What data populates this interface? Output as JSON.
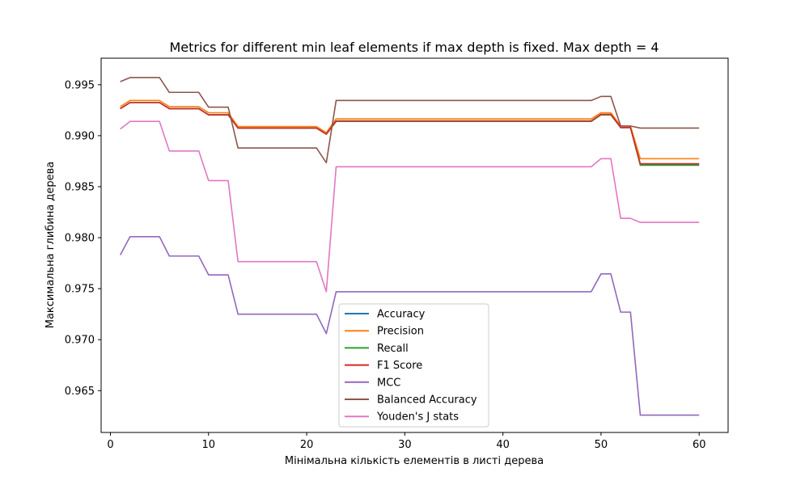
{
  "chart_data": {
    "type": "line",
    "title": "Metrics for different min leaf elements if max depth is fixed. Max depth = 4",
    "xlabel": "Мінімальна кількість елементів в листі дерева",
    "ylabel": "Максимальна глибина дерева",
    "xlim": [
      -0.95,
      62.95
    ],
    "ylim": [
      0.9609,
      0.9976
    ],
    "xticks": [
      0,
      10,
      20,
      30,
      40,
      50,
      60
    ],
    "yticks": [
      0.965,
      0.97,
      0.975,
      0.98,
      0.985,
      0.99,
      0.995
    ],
    "grid": false,
    "legend_position": "lower-center",
    "x": [
      1,
      2,
      3,
      4,
      5,
      6,
      7,
      8,
      9,
      10,
      11,
      12,
      13,
      14,
      15,
      16,
      17,
      18,
      19,
      20,
      21,
      22,
      23,
      24,
      25,
      26,
      27,
      28,
      29,
      30,
      31,
      32,
      33,
      34,
      35,
      36,
      37,
      38,
      39,
      40,
      41,
      42,
      43,
      44,
      45,
      46,
      47,
      48,
      49,
      50,
      51,
      52,
      53,
      54,
      55,
      56,
      57,
      58,
      59,
      60
    ],
    "series": [
      {
        "name": "Accuracy",
        "color": "#1f77b4",
        "values": [
          0.99265,
          0.99325,
          0.99325,
          0.99325,
          0.99325,
          0.99265,
          0.99265,
          0.99265,
          0.99265,
          0.99205,
          0.99205,
          0.99205,
          0.99075,
          0.99075,
          0.99075,
          0.99075,
          0.99075,
          0.99075,
          0.99075,
          0.99075,
          0.99075,
          0.99015,
          0.9914,
          0.9914,
          0.9914,
          0.9914,
          0.9914,
          0.9914,
          0.9914,
          0.9914,
          0.9914,
          0.9914,
          0.9914,
          0.9914,
          0.9914,
          0.9914,
          0.9914,
          0.9914,
          0.9914,
          0.9914,
          0.9914,
          0.9914,
          0.9914,
          0.9914,
          0.9914,
          0.9914,
          0.9914,
          0.9914,
          0.9914,
          0.99205,
          0.99205,
          0.9908,
          0.9908,
          0.9872,
          0.9872,
          0.9872,
          0.9872,
          0.9872,
          0.9872,
          0.9872
        ]
      },
      {
        "name": "Precision",
        "color": "#ff7f0e",
        "values": [
          0.99285,
          0.99345,
          0.99345,
          0.99345,
          0.99345,
          0.99285,
          0.99285,
          0.99285,
          0.99285,
          0.99225,
          0.99225,
          0.99225,
          0.9909,
          0.9909,
          0.9909,
          0.9909,
          0.9909,
          0.9909,
          0.9909,
          0.9909,
          0.9909,
          0.9903,
          0.99165,
          0.99165,
          0.99165,
          0.99165,
          0.99165,
          0.99165,
          0.99165,
          0.99165,
          0.99165,
          0.99165,
          0.99165,
          0.99165,
          0.99165,
          0.99165,
          0.99165,
          0.99165,
          0.99165,
          0.99165,
          0.99165,
          0.99165,
          0.99165,
          0.99165,
          0.99165,
          0.99165,
          0.99165,
          0.99165,
          0.99165,
          0.99225,
          0.99225,
          0.99095,
          0.99095,
          0.98775,
          0.98775,
          0.98775,
          0.98775,
          0.98775,
          0.98775,
          0.98775
        ]
      },
      {
        "name": "Recall",
        "color": "#2ca02c",
        "values": [
          0.99265,
          0.99325,
          0.99325,
          0.99325,
          0.99325,
          0.99265,
          0.99265,
          0.99265,
          0.99265,
          0.99205,
          0.99205,
          0.99205,
          0.99075,
          0.99075,
          0.99075,
          0.99075,
          0.99075,
          0.99075,
          0.99075,
          0.99075,
          0.99075,
          0.99015,
          0.9914,
          0.9914,
          0.9914,
          0.9914,
          0.9914,
          0.9914,
          0.9914,
          0.9914,
          0.9914,
          0.9914,
          0.9914,
          0.9914,
          0.9914,
          0.9914,
          0.9914,
          0.9914,
          0.9914,
          0.9914,
          0.9914,
          0.9914,
          0.9914,
          0.9914,
          0.9914,
          0.9914,
          0.9914,
          0.9914,
          0.9914,
          0.99205,
          0.99205,
          0.9908,
          0.9908,
          0.9871,
          0.9871,
          0.9871,
          0.9871,
          0.9871,
          0.9871,
          0.9871
        ]
      },
      {
        "name": "F1 Score",
        "color": "#d62728",
        "values": [
          0.99265,
          0.99325,
          0.99325,
          0.99325,
          0.99325,
          0.99265,
          0.99265,
          0.99265,
          0.99265,
          0.99205,
          0.99205,
          0.99205,
          0.99075,
          0.99075,
          0.99075,
          0.99075,
          0.99075,
          0.99075,
          0.99075,
          0.99075,
          0.99075,
          0.99015,
          0.99145,
          0.99145,
          0.99145,
          0.99145,
          0.99145,
          0.99145,
          0.99145,
          0.99145,
          0.99145,
          0.99145,
          0.99145,
          0.99145,
          0.99145,
          0.99145,
          0.99145,
          0.99145,
          0.99145,
          0.99145,
          0.99145,
          0.99145,
          0.99145,
          0.99145,
          0.99145,
          0.99145,
          0.99145,
          0.99145,
          0.99145,
          0.9921,
          0.9921,
          0.9908,
          0.9908,
          0.98725,
          0.98725,
          0.98725,
          0.98725,
          0.98725,
          0.98725,
          0.98725
        ]
      },
      {
        "name": "MCC",
        "color": "#9467bd",
        "values": [
          0.9783,
          0.9801,
          0.9801,
          0.9801,
          0.9801,
          0.9782,
          0.9782,
          0.9782,
          0.9782,
          0.97635,
          0.97635,
          0.97635,
          0.9725,
          0.9725,
          0.9725,
          0.9725,
          0.9725,
          0.9725,
          0.9725,
          0.9725,
          0.9725,
          0.9706,
          0.9747,
          0.9747,
          0.9747,
          0.9747,
          0.9747,
          0.9747,
          0.9747,
          0.9747,
          0.9747,
          0.9747,
          0.9747,
          0.9747,
          0.9747,
          0.9747,
          0.9747,
          0.9747,
          0.9747,
          0.9747,
          0.9747,
          0.9747,
          0.9747,
          0.9747,
          0.9747,
          0.9747,
          0.9747,
          0.9747,
          0.9747,
          0.97645,
          0.97645,
          0.9727,
          0.9727,
          0.9626,
          0.9626,
          0.9626,
          0.9626,
          0.9626,
          0.9626,
          0.9626
        ]
      },
      {
        "name": "Balanced Accuracy",
        "color": "#8c564b",
        "values": [
          0.9953,
          0.9957,
          0.9957,
          0.9957,
          0.9957,
          0.99425,
          0.99425,
          0.99425,
          0.99425,
          0.9928,
          0.9928,
          0.9928,
          0.9888,
          0.9888,
          0.9888,
          0.9888,
          0.9888,
          0.9888,
          0.9888,
          0.9888,
          0.9888,
          0.98735,
          0.99345,
          0.99345,
          0.99345,
          0.99345,
          0.99345,
          0.99345,
          0.99345,
          0.99345,
          0.99345,
          0.99345,
          0.99345,
          0.99345,
          0.99345,
          0.99345,
          0.99345,
          0.99345,
          0.99345,
          0.99345,
          0.99345,
          0.99345,
          0.99345,
          0.99345,
          0.99345,
          0.99345,
          0.99345,
          0.99345,
          0.99345,
          0.99385,
          0.99385,
          0.99095,
          0.99095,
          0.99075,
          0.99075,
          0.99075,
          0.99075,
          0.99075,
          0.99075,
          0.99075
        ]
      },
      {
        "name": "Youden's J stats",
        "color": "#e377c2",
        "values": [
          0.99065,
          0.9914,
          0.9914,
          0.9914,
          0.9914,
          0.9885,
          0.9885,
          0.9885,
          0.9885,
          0.9856,
          0.9856,
          0.9856,
          0.97765,
          0.97765,
          0.97765,
          0.97765,
          0.97765,
          0.97765,
          0.97765,
          0.97765,
          0.97765,
          0.9747,
          0.98695,
          0.98695,
          0.98695,
          0.98695,
          0.98695,
          0.98695,
          0.98695,
          0.98695,
          0.98695,
          0.98695,
          0.98695,
          0.98695,
          0.98695,
          0.98695,
          0.98695,
          0.98695,
          0.98695,
          0.98695,
          0.98695,
          0.98695,
          0.98695,
          0.98695,
          0.98695,
          0.98695,
          0.98695,
          0.98695,
          0.98695,
          0.98775,
          0.98775,
          0.9819,
          0.9819,
          0.9815,
          0.9815,
          0.9815,
          0.9815,
          0.9815,
          0.9815,
          0.9815
        ]
      }
    ]
  }
}
